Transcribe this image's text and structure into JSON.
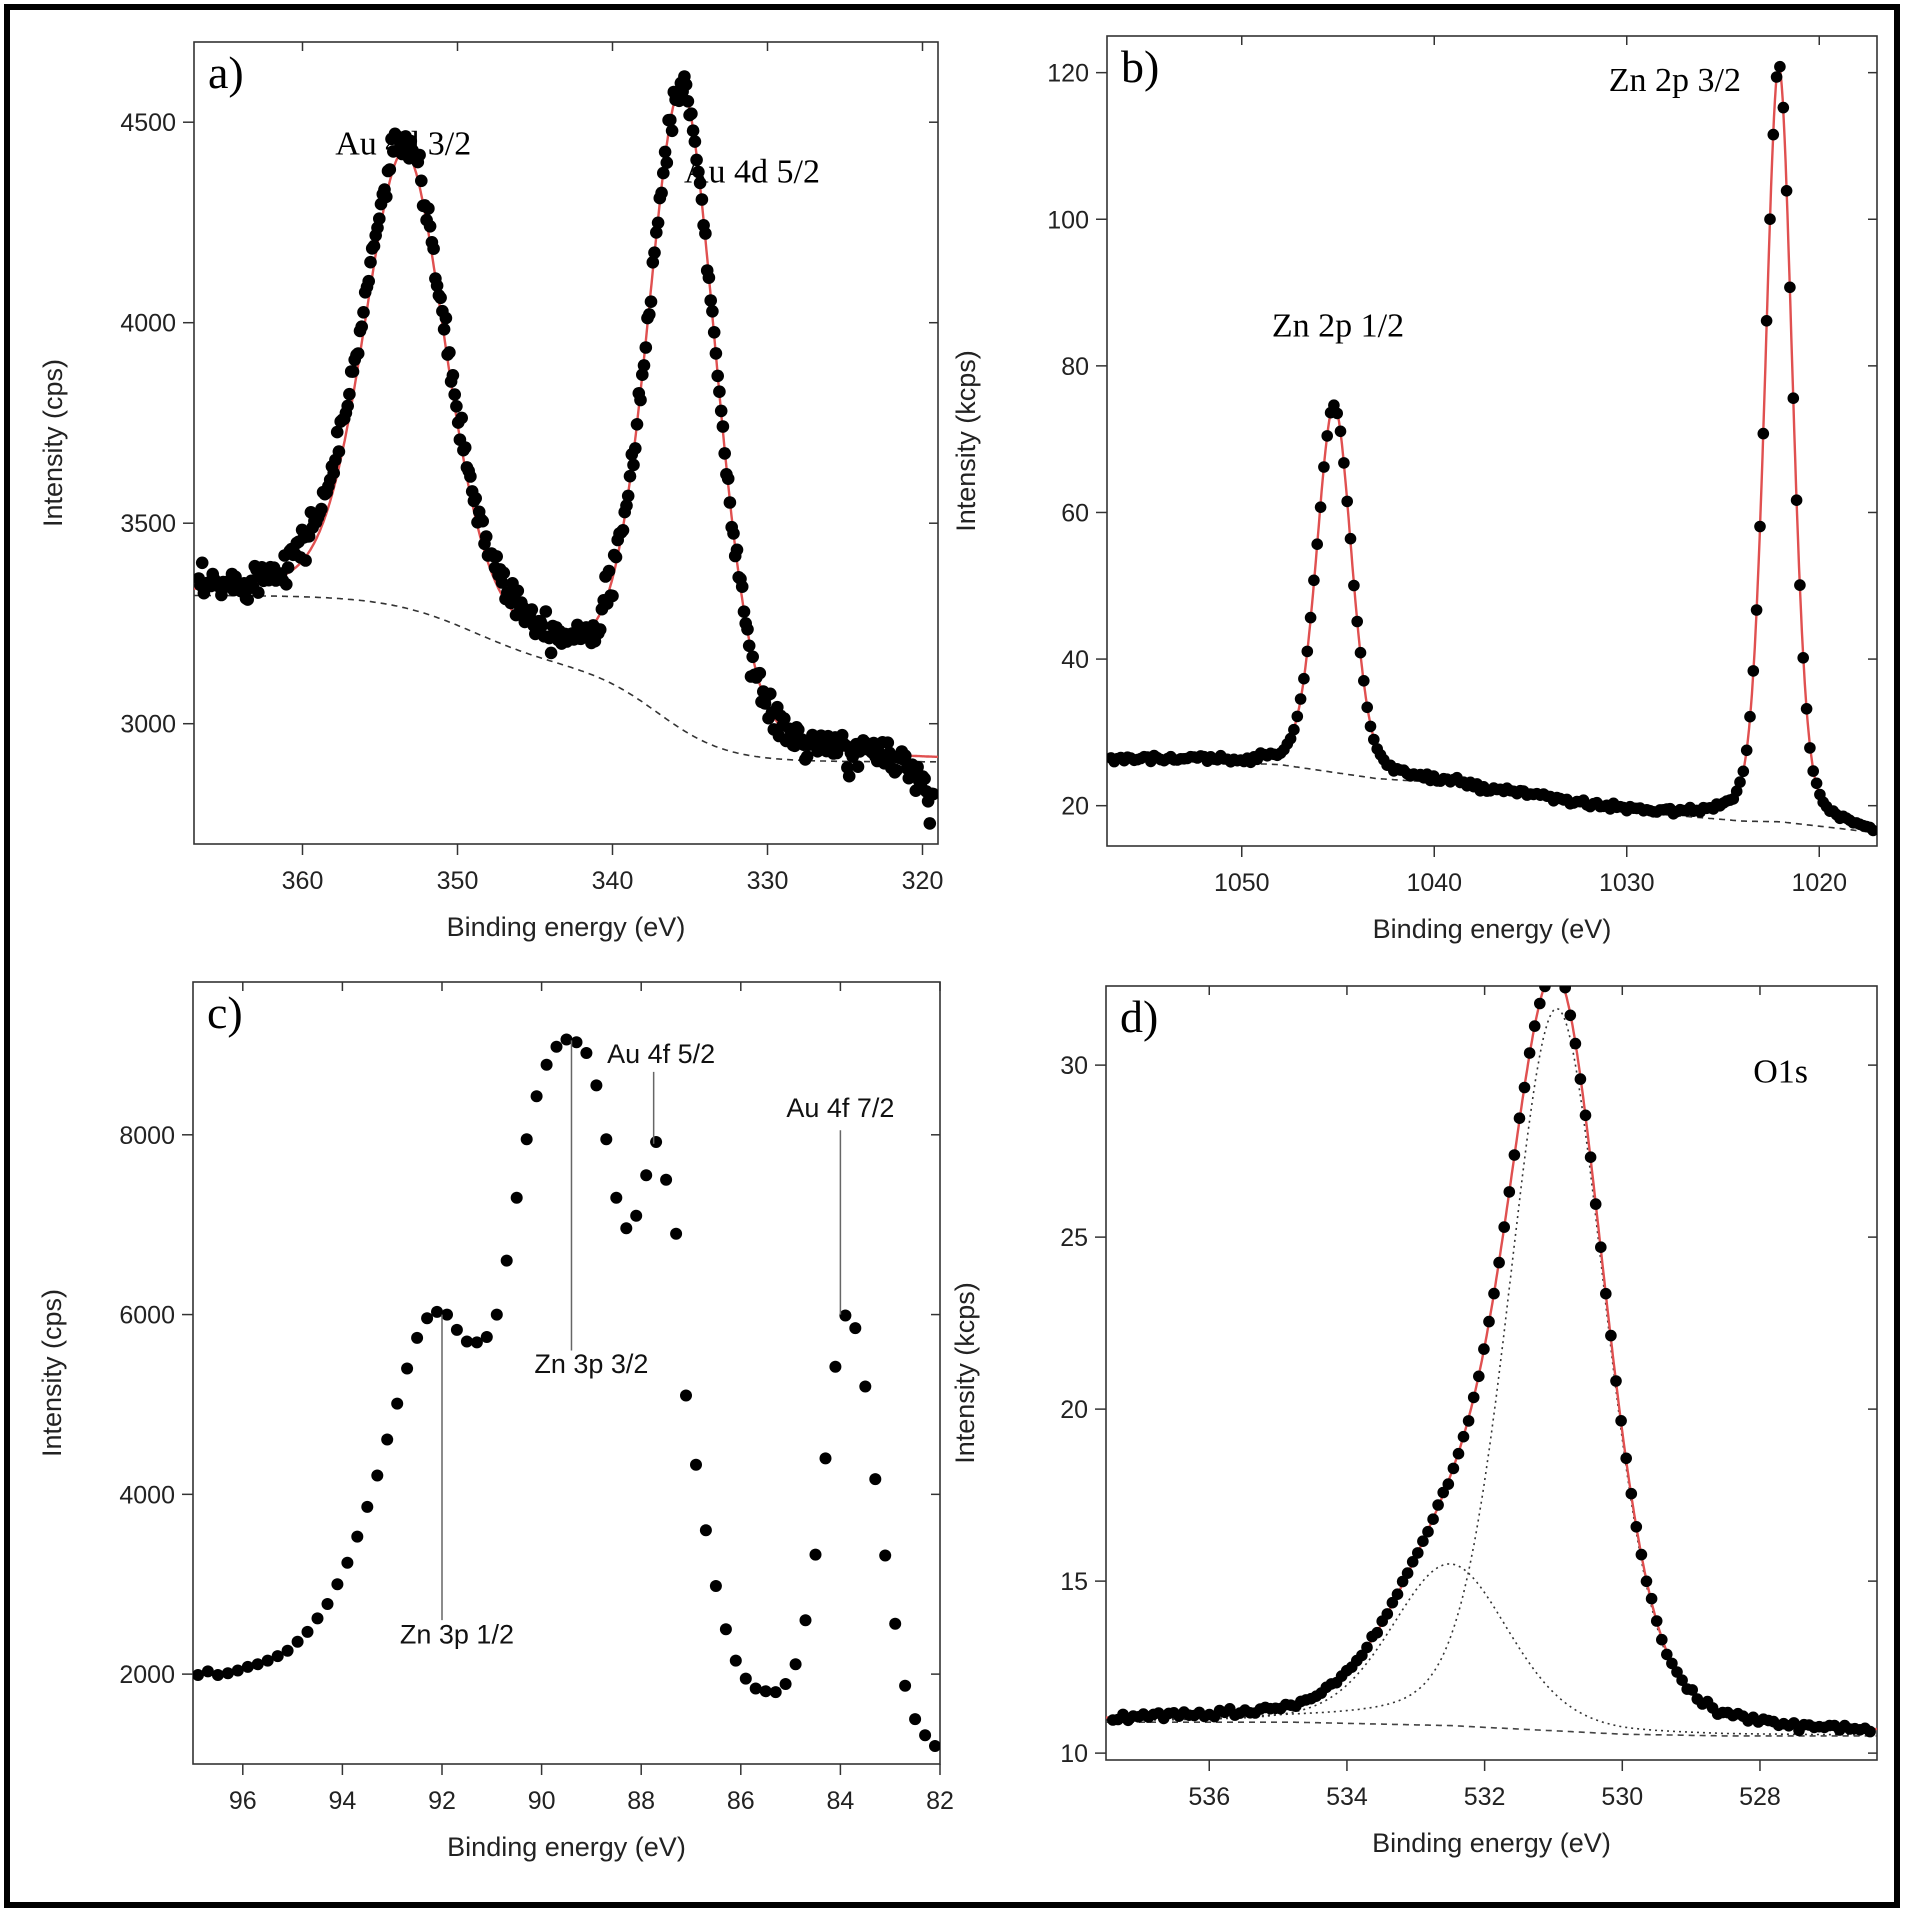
{
  "chart_data": [
    {
      "id": "a",
      "type": "scatter",
      "panel_label": "a)",
      "xlabel": "Binding energy (eV)",
      "ylabel": "Intensity (cps)",
      "xlim": [
        367,
        319
      ],
      "ylim": [
        2700,
        4700
      ],
      "xticks": [
        360,
        350,
        340,
        330,
        320
      ],
      "yticks": [
        3000,
        3500,
        4000,
        4500
      ],
      "colors": {
        "points": "#000000",
        "fit": "#e05050",
        "background": "#333333"
      },
      "annotations": [
        {
          "text": "Au 4d 3/2",
          "x": 353.5,
          "y": 4420,
          "style": "serif"
        },
        {
          "text": "Au 4d 5/2",
          "x": 331,
          "y": 4350,
          "style": "serif"
        }
      ],
      "model": {
        "background": {
          "levels": [
            3320,
            3140,
            2905
          ],
          "steps": [
            {
              "x": 349,
              "w": 2.8
            },
            {
              "x": 337,
              "w": 2.2
            }
          ]
        },
        "peaks": [
          {
            "x": 353.4,
            "sigma": 2.6,
            "amp": 1130,
            "gamma": 2.6
          },
          {
            "x": 335.5,
            "sigma": 2.2,
            "amp": 1590,
            "gamma": 2.2
          }
        ],
        "points": {
          "xmin": 319.3,
          "xmax": 366.7,
          "count": 420,
          "noise": 22,
          "endpoint_drop": {
            "from": 321.5,
            "to": 319.3,
            "amount": 110
          }
        }
      }
    },
    {
      "id": "b",
      "type": "scatter",
      "panel_label": "b)",
      "xlabel": "Binding energy (eV)",
      "ylabel": "Intensity (kcps)",
      "xlim": [
        1057,
        1017
      ],
      "ylim": [
        14.5,
        125
      ],
      "xticks": [
        1050,
        1040,
        1030,
        1020
      ],
      "yticks": [
        20,
        40,
        60,
        80,
        100,
        120
      ],
      "colors": {
        "points": "#000000",
        "fit": "#e05050",
        "background": "#333333"
      },
      "annotations": [
        {
          "text": "Zn  2p 1/2",
          "x": 1045,
          "y": 84,
          "style": "serif"
        },
        {
          "text": "Zn  2p 3/2",
          "x": 1027.5,
          "y": 117.5,
          "style": "serif"
        }
      ],
      "model": {
        "background": {
          "linear": [
            [
              1057,
              26.5
            ],
            [
              1048,
              25.6
            ],
            [
              1043,
              23.7
            ],
            [
              1040,
              23.2
            ],
            [
              1030,
              19.2
            ],
            [
              1024,
              17.9
            ],
            [
              1022,
              17.8
            ],
            [
              1017,
              16.3
            ]
          ]
        },
        "peaks": [
          {
            "x": 1045.2,
            "sigma": 0.9,
            "amp": 50,
            "gamma": 0.9
          },
          {
            "x": 1022.1,
            "sigma": 0.7,
            "amp": 103,
            "gamma": 0.7
          }
        ],
        "points": {
          "xmin": 1017.2,
          "xmax": 1056.8,
          "count": 230,
          "noise": 0.25,
          "endpoint_drop": null
        }
      }
    },
    {
      "id": "c",
      "type": "scatter",
      "panel_label": "c)",
      "xlabel": "Binding energy (eV)",
      "ylabel": "Intensity (cps)",
      "xlim": [
        97,
        82
      ],
      "ylim": [
        1000,
        9700
      ],
      "xticks": [
        96,
        94,
        92,
        90,
        88,
        86,
        84,
        82
      ],
      "yticks": [
        2000,
        4000,
        6000,
        8000
      ],
      "colors": {
        "points": "#000000",
        "leader": "#666666"
      },
      "annotations": [
        {
          "text": "Au 4f 5/2",
          "x": 87.6,
          "y": 8800,
          "line_to": [
            87.75,
            7900
          ],
          "line_from_y": 8700,
          "style": "sans"
        },
        {
          "text": "Au 4f 7/2",
          "x": 84,
          "y": 8200,
          "line_to": [
            84,
            6000
          ],
          "line_from_y": 8050,
          "style": "sans"
        },
        {
          "text": "Zn 3p 3/2",
          "x": 89.0,
          "y": 5350,
          "line_to": [
            89.4,
            9050
          ],
          "line_from_y": 5600,
          "style": "sans"
        },
        {
          "text": "Zn 3p 1/2",
          "x": 91.7,
          "y": 2340,
          "line_to": [
            92.0,
            6000
          ],
          "line_from_y": 2600,
          "style": "sans"
        }
      ],
      "series": [
        {
          "x": [
            96.9,
            96.7,
            96.5,
            96.3,
            96.1,
            95.9,
            95.7,
            95.5,
            95.3,
            95.1,
            94.9,
            94.7,
            94.5,
            94.3,
            94.1,
            93.9,
            93.7,
            93.5,
            93.3,
            93.1,
            92.9,
            92.7,
            92.5,
            92.3,
            92.1,
            91.9,
            91.7,
            91.5,
            91.3,
            91.1,
            90.9,
            90.7,
            90.5,
            90.3,
            90.1,
            89.9,
            89.7,
            89.5,
            89.3,
            89.1,
            88.9,
            88.7,
            88.5,
            88.3,
            88.1,
            87.9,
            87.7,
            87.5,
            87.3,
            87.1,
            86.9,
            86.7,
            86.5,
            86.3,
            86.1,
            85.9,
            85.7,
            85.5,
            85.3,
            85.1,
            84.9,
            84.7,
            84.5,
            84.3,
            84.1,
            83.9,
            83.7,
            83.5,
            83.3,
            83.1,
            82.9,
            82.7,
            82.5,
            82.3,
            82.1
          ],
          "y": [
            1990,
            2030,
            1990,
            2010,
            2040,
            2080,
            2110,
            2150,
            2200,
            2260,
            2360,
            2470,
            2620,
            2780,
            3000,
            3240,
            3530,
            3860,
            4210,
            4610,
            5010,
            5400,
            5740,
            5960,
            6030,
            6000,
            5830,
            5700,
            5690,
            5750,
            6000,
            6600,
            7300,
            7950,
            8430,
            8780,
            8980,
            9060,
            9030,
            8910,
            8550,
            7950,
            7300,
            6960,
            7100,
            7550,
            7920,
            7500,
            6900,
            5100,
            4330,
            3600,
            2980,
            2500,
            2150,
            1950,
            1840,
            1810,
            1800,
            1890,
            2110,
            2600,
            3330,
            4400,
            5420,
            5990,
            5850,
            5200,
            4170,
            3320,
            2560,
            1870,
            1500,
            1320,
            1200
          ]
        }
      ]
    },
    {
      "id": "d",
      "type": "scatter",
      "panel_label": "d)",
      "xlabel": "Binding energy (eV)",
      "ylabel": "Intensity (kcps)",
      "xlim": [
        537.5,
        526.3
      ],
      "ylim": [
        9.8,
        32.3
      ],
      "xticks": [
        536,
        534,
        532,
        530,
        528
      ],
      "yticks": [
        10,
        15,
        20,
        25,
        30
      ],
      "colors": {
        "points": "#000000",
        "fit": "#e05050",
        "components": "#333333",
        "background": "#444444"
      },
      "annotations": [
        {
          "text": "O1s",
          "x": 527.7,
          "y": 29.5,
          "style": "serif"
        }
      ],
      "model": {
        "background": {
          "linear": [
            [
              537.5,
              10.9
            ],
            [
              534.8,
              10.9
            ],
            [
              532.5,
              10.8
            ],
            [
              530,
              10.55
            ],
            [
              528.5,
              10.5
            ],
            [
              526.3,
              10.5
            ]
          ]
        },
        "peaks": [
          {
            "x": 532.5,
            "sigma": 0.85,
            "amp": 4.7,
            "gamma": 0.85
          },
          {
            "x": 530.95,
            "sigma": 0.7,
            "amp": 21.0,
            "gamma": 0.7
          }
        ],
        "points": {
          "xmin": 526.4,
          "xmax": 537.4,
          "count": 150,
          "noise": 0.05,
          "endpoint_drop": null
        }
      }
    }
  ]
}
